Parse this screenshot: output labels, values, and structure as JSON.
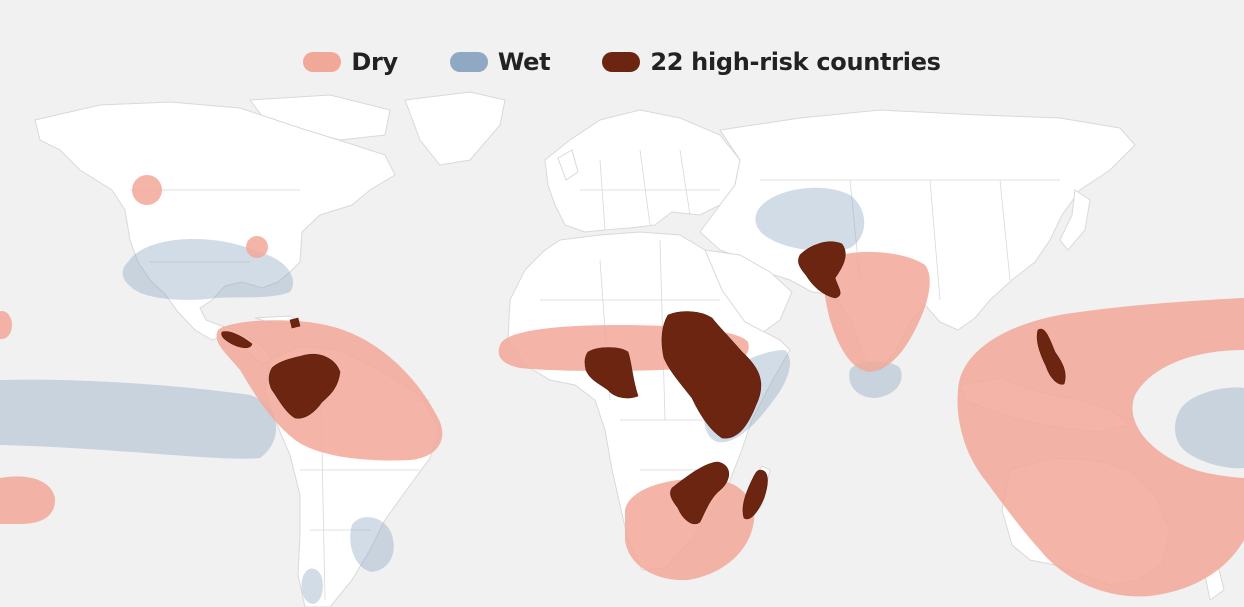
{
  "legend": {
    "dry": {
      "label": "Dry",
      "color": "#f2a899"
    },
    "wet": {
      "label": "Wet",
      "color": "#8fa8c4"
    },
    "high_risk": {
      "label": "22 high-risk countries",
      "color": "#6b2510"
    }
  },
  "colors": {
    "background": "#f1f1f1",
    "land": "#ffffff"
  }
}
